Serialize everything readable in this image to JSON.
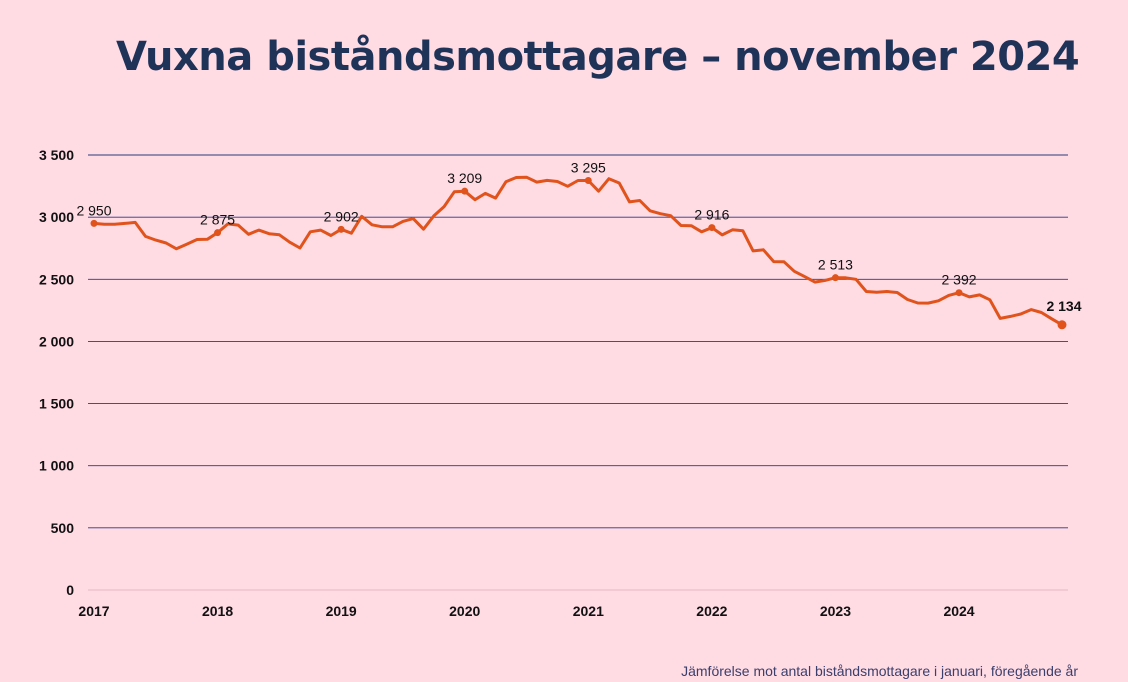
{
  "title": "Vuxna biståndsmottagare – november 2024",
  "footnote": "Jämförelse mot antal biståndsmottagare i januari, föregående år",
  "chart_data": {
    "type": "line",
    "title": "Vuxna biståndsmottagare – november 2024",
    "ylim": [
      0,
      3500
    ],
    "yticks": [
      0,
      500,
      1000,
      1500,
      2000,
      2500,
      3000,
      3500
    ],
    "ytick_labels": [
      "0",
      "500",
      "1 000",
      "1 500",
      "2 000",
      "2 500",
      "3 000",
      "3 500"
    ],
    "xticks": [
      "2017",
      "2018",
      "2019",
      "2020",
      "2021",
      "2022",
      "2023",
      "2024"
    ],
    "x_start": "2017-01",
    "x_end": "2024-11",
    "grid": true,
    "colors": {
      "line": "#e0541c",
      "grid": "#2b3a7a",
      "title": "#1f3359",
      "background": "#ffdbe4"
    },
    "series": [
      {
        "values": [
          2950,
          2943,
          2943,
          2950,
          2958,
          2845,
          2815,
          2792,
          2745,
          2782,
          2820,
          2822,
          2875,
          2946,
          2936,
          2862,
          2896,
          2867,
          2858,
          2798,
          2752,
          2882,
          2896,
          2852,
          2902,
          2871,
          3007,
          2938,
          2922,
          2922,
          2966,
          2988,
          2903,
          3010,
          3085,
          3205,
          3209,
          3140,
          3191,
          3153,
          3284,
          3319,
          3321,
          3282,
          3296,
          3287,
          3248,
          3295,
          3295,
          3209,
          3309,
          3275,
          3123,
          3134,
          3051,
          3028,
          3012,
          2933,
          2931,
          2882,
          2916,
          2857,
          2898,
          2891,
          2728,
          2737,
          2642,
          2641,
          2564,
          2522,
          2477,
          2491,
          2513,
          2512,
          2500,
          2402,
          2395,
          2402,
          2394,
          2337,
          2309,
          2308,
          2327,
          2370,
          2392,
          2358,
          2374,
          2335,
          2185,
          2201,
          2221,
          2256,
          2233,
          2182,
          2134
        ]
      }
    ],
    "annotations": [
      {
        "x": "2017-01",
        "value": 2950,
        "label": "2 950"
      },
      {
        "x": "2018-01",
        "value": 2875,
        "label": "2 875"
      },
      {
        "x": "2019-01",
        "value": 2902,
        "label": "2 902"
      },
      {
        "x": "2020-01",
        "value": 3209,
        "label": "3 209"
      },
      {
        "x": "2021-01",
        "value": 3295,
        "label": "3 295"
      },
      {
        "x": "2022-01",
        "value": 2916,
        "label": "2 916"
      },
      {
        "x": "2023-01",
        "value": 2513,
        "label": "2 513"
      },
      {
        "x": "2024-01",
        "value": 2392,
        "label": "2 392"
      },
      {
        "x": "2024-11",
        "value": 2134,
        "label": "2 134",
        "bold": true
      }
    ]
  }
}
